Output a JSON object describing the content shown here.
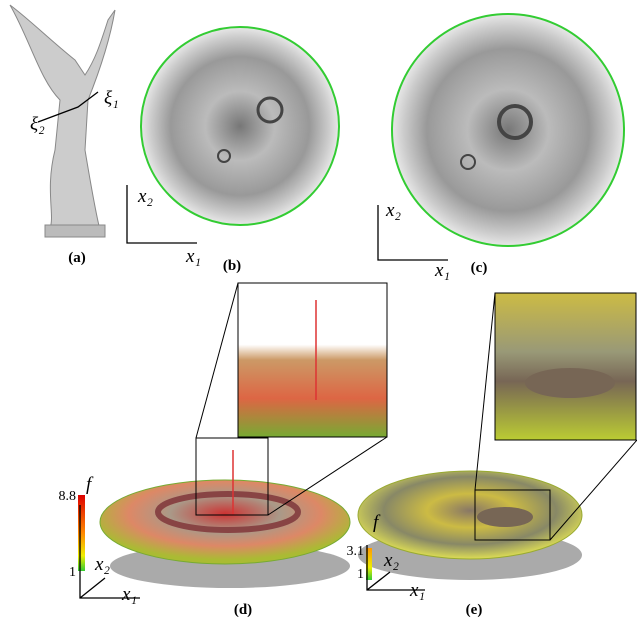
{
  "panels": [
    {
      "label": "(a)",
      "axes": [
        "ξ₁",
        "ξ₂"
      ]
    },
    {
      "label": "(b)",
      "axes": [
        "x₁",
        "x₂"
      ]
    },
    {
      "label": "(c)",
      "axes": [
        "x₁",
        "x₂"
      ]
    },
    {
      "label": "(d)",
      "axes": [
        "x₁",
        "x₂"
      ],
      "colorbar": {
        "label": "f",
        "max": "8.8",
        "min": "1"
      }
    },
    {
      "label": "(e)",
      "axes": [
        "x₁",
        "x₂"
      ],
      "colorbar": {
        "label": "f",
        "max": "3.1",
        "min": "1"
      }
    }
  ]
}
